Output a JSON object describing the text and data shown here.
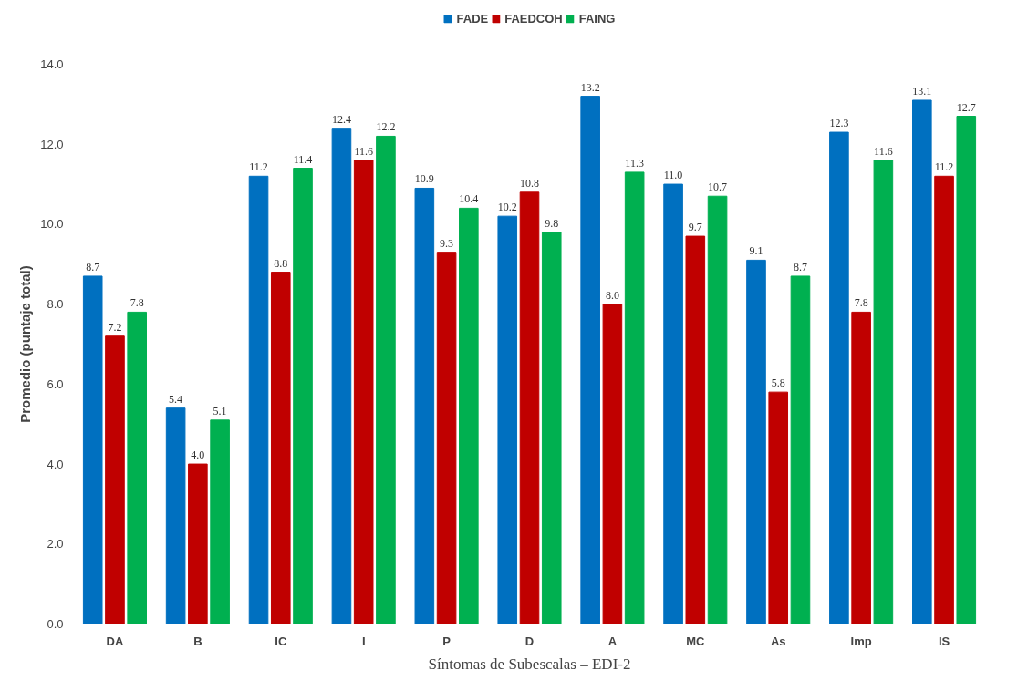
{
  "chart_data": {
    "type": "bar",
    "xlabel": "Síntomas de Subescalas – EDI-2",
    "ylabel": "Promedio (puntaje total)",
    "categories": [
      "DA",
      "B",
      "IC",
      "I",
      "P",
      "D",
      "A",
      "MC",
      "As",
      "Imp",
      "IS"
    ],
    "series": [
      {
        "name": "FADE",
        "color": "#0070c0",
        "values": [
          8.7,
          5.4,
          11.2,
          12.4,
          10.9,
          10.2,
          13.2,
          11,
          9.1,
          12.3,
          13.1
        ],
        "value_labels": [
          "8.7",
          "5.4",
          "11.2",
          "12.4",
          "10.9",
          "10.2",
          "13.2",
          "11.0",
          "9.1",
          "12.3",
          "13.1"
        ]
      },
      {
        "name": "FAEDCOH",
        "color": "#c00000",
        "values": [
          7.2,
          4,
          8.8,
          11.6,
          9.3,
          10.8,
          8,
          9.7,
          5.8,
          7.8,
          11.2
        ],
        "value_labels": [
          "7.2",
          "4.0",
          "8.8",
          "11.6",
          "9.3",
          "10.8",
          "8.0",
          "9.7",
          "5.8",
          "7.8",
          "11.2"
        ]
      },
      {
        "name": "FAING",
        "color": "#00b050",
        "values": [
          7.8,
          5.1,
          11.4,
          12.2,
          10.4,
          9.8,
          11.3,
          10.7,
          8.7,
          11.6,
          12.7
        ],
        "value_labels": [
          "7.8",
          "5.1",
          "11.4",
          "12.2",
          "10.4",
          "9.8",
          "11.3",
          "10.7",
          "8.7",
          "11.6",
          "12.7"
        ]
      }
    ],
    "ylim": [
      0,
      14
    ],
    "yticks": [
      {
        "value": 0,
        "label": "0.0"
      },
      {
        "value": 2,
        "label": "2.0"
      },
      {
        "value": 4,
        "label": "4.0"
      },
      {
        "value": 6,
        "label": "6.0"
      },
      {
        "value": 8,
        "label": "8.0"
      },
      {
        "value": 10,
        "label": "10.0"
      },
      {
        "value": 12,
        "label": "12.0"
      },
      {
        "value": 14,
        "label": "14.0"
      }
    ],
    "grid": false,
    "legend": "top"
  }
}
